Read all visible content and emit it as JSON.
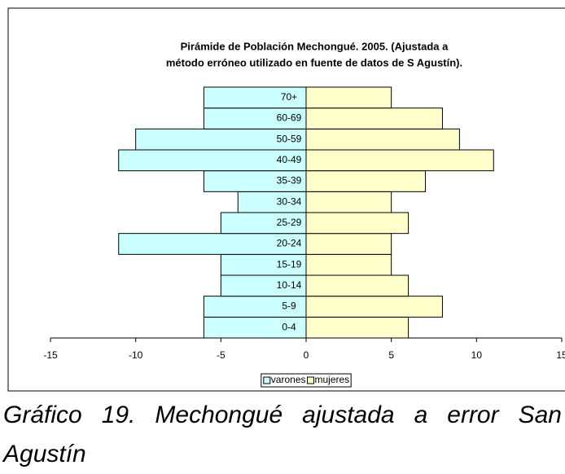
{
  "chart_data": {
    "type": "population-pyramid",
    "title": [
      "Pirámide de Población Mechongué. 2005. (Ajustada a",
      "método erróneo utilizado en fuente de datos de S Agustín)."
    ],
    "categories": [
      "0-4",
      "5-9",
      "10-14",
      "15-19",
      "20-24",
      "25-29",
      "30-34",
      "35-39",
      "40-49",
      "50-59",
      "60-69",
      "70+"
    ],
    "series": [
      {
        "name": "varones",
        "color": "#ccffff",
        "values": [
          -6,
          -6,
          -5,
          -5,
          -11,
          -5,
          -4,
          -6,
          -11,
          -10,
          -6,
          -6
        ]
      },
      {
        "name": "mujeres",
        "color": "#ffffcc",
        "values": [
          6,
          8,
          6,
          5,
          5,
          6,
          5,
          7,
          11,
          9,
          8,
          5
        ]
      }
    ],
    "xlim": [
      -15,
      15
    ],
    "xticks": [
      -15,
      -10,
      -5,
      0,
      5,
      10,
      15
    ],
    "legend": "bottom"
  },
  "caption": "Gráfico 19. Mechongué ajustada a error San Agustín"
}
